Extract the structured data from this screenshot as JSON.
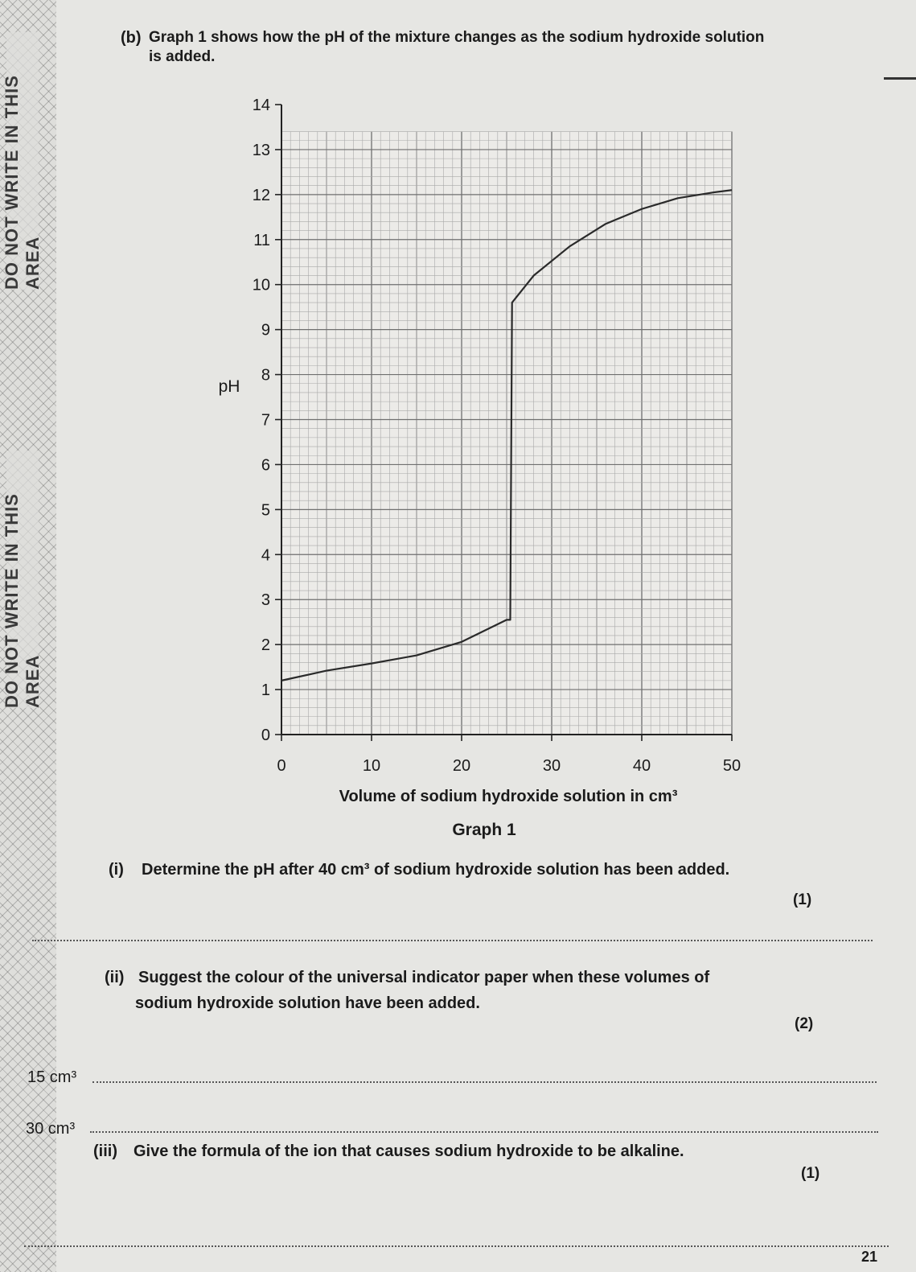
{
  "margin": {
    "notice": "DO NOT WRITE IN THIS AREA"
  },
  "question_b": {
    "label": "(b)",
    "text": "Graph 1 shows how the pH of the mixture changes as the sodium hydroxide solution",
    "text_cont": "is added."
  },
  "chart_data": {
    "type": "line",
    "title": "Graph 1",
    "xlabel": "Volume of sodium hydroxide solution in cm³",
    "ylabel": "pH",
    "xlim": [
      0,
      50
    ],
    "ylim": [
      0,
      14
    ],
    "x_ticks": [
      0,
      10,
      20,
      30,
      40,
      50
    ],
    "y_ticks": [
      0,
      1,
      2,
      3,
      4,
      5,
      6,
      7,
      8,
      9,
      10,
      11,
      12,
      13,
      14
    ],
    "grid": true,
    "series": [
      {
        "x": [
          0,
          5,
          10,
          15,
          20,
          25,
          25.4,
          25.6,
          28,
          32,
          36,
          40,
          44,
          48,
          50
        ],
        "y": [
          1.2,
          1.42,
          1.58,
          1.76,
          2.06,
          2.55,
          2.55,
          9.6,
          10.2,
          10.85,
          11.35,
          11.68,
          11.92,
          12.05,
          12.1
        ]
      }
    ]
  },
  "part_i": {
    "label": "(i)",
    "text": "Determine the pH after 40 cm³ of sodium hydroxide solution has been added.",
    "marks": "(1)"
  },
  "part_ii": {
    "label": "(ii)",
    "text1": "Suggest the colour of the universal indicator paper when these volumes of",
    "text2": "sodium hydroxide solution have been added.",
    "marks": "(2)",
    "volume1": "15 cm³",
    "volume2": "30 cm³"
  },
  "part_iii": {
    "label": "(iii)",
    "text": "Give the formula of the ion that causes sodium hydroxide to be alkaline.",
    "marks": "(1)"
  },
  "page": {
    "number": "21"
  }
}
